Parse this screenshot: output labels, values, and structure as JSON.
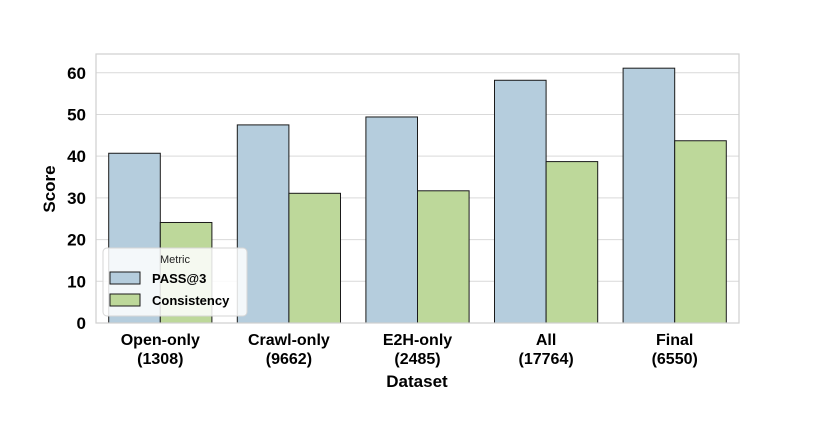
{
  "chart_data": {
    "type": "bar",
    "categories": [
      "Open-only\n(1308)",
      "Crawl-only\n(9662)",
      "E2H-only\n(2485)",
      "All\n(17764)",
      "Final\n(6550)"
    ],
    "series": [
      {
        "name": "PASS@3",
        "values": [
          40.7,
          47.5,
          49.4,
          58.2,
          61.1
        ],
        "color": "#b5cddd"
      },
      {
        "name": "Consistency",
        "values": [
          24.1,
          31.1,
          31.7,
          38.7,
          43.7
        ],
        "color": "#bdd89a"
      }
    ],
    "xlabel": "Dataset",
    "ylabel": "Score",
    "ylim": [
      0,
      64.5
    ],
    "yticks": [
      0,
      10,
      20,
      30,
      40,
      50,
      60
    ],
    "grid": true,
    "legend": {
      "title": "Metric",
      "placement": "lower-left"
    }
  }
}
